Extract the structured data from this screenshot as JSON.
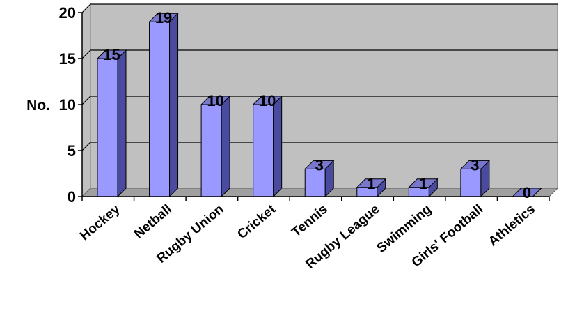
{
  "chart_data": {
    "type": "bar",
    "title": "",
    "xlabel": "",
    "ylabel": "No.",
    "categories": [
      "Hockey",
      "Netball",
      "Rugby Union",
      "Cricket",
      "Tennis",
      "Rugby League",
      "Swimming",
      "Girls' Football",
      "Athletics"
    ],
    "values": [
      15,
      19,
      10,
      10,
      3,
      1,
      1,
      3,
      0
    ],
    "ylim": [
      0,
      20
    ],
    "yticks": [
      0,
      5,
      10,
      15,
      20
    ],
    "grid": true,
    "style": "3d-column",
    "colors": {
      "bar_front": "#9999ff",
      "bar_side": "#4a4a9e",
      "bar_top": "#7777cc",
      "wall": "#c0c0c0",
      "floor": "#a0a0a0",
      "outline": "#000000"
    }
  }
}
